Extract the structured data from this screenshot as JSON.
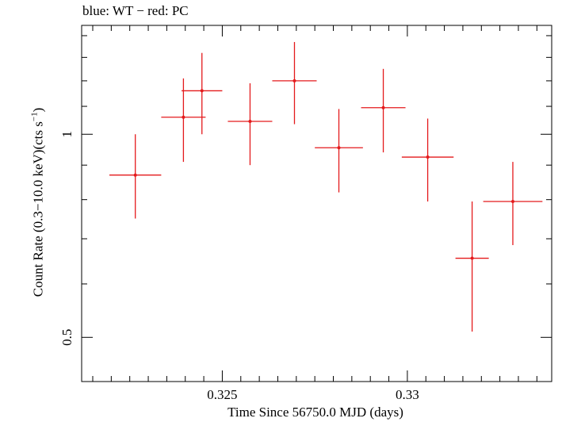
{
  "chart_data": {
    "type": "scatter",
    "title": "blue: WT − red: PC",
    "xlabel": "Time Since 56750.0 MJD (days)",
    "ylabel": "Count Rate (0.3−10.0 keV)(cts s",
    "ylabel_sup": "−1",
    "ylabel_end": ")",
    "xlim": [
      0.3212,
      0.3339
    ],
    "ylim": [
      0.43,
      1.45
    ],
    "yscale": "log",
    "x_ticks": [
      {
        "value": 0.325,
        "label": "0.325"
      },
      {
        "value": 0.33,
        "label": "0.33"
      }
    ],
    "y_ticks": [
      {
        "value": 0.5,
        "label": "0.5"
      },
      {
        "value": 1,
        "label": "1"
      }
    ],
    "grid": false,
    "series": [
      {
        "color": "#e41a1c",
        "points": [
          {
            "x": 0.32265,
            "xerr": 0.0007,
            "y": 0.87,
            "ylo": 0.75,
            "yhi": 1.0
          },
          {
            "x": 0.32395,
            "xerr": 0.0006,
            "y": 1.06,
            "ylo": 0.91,
            "yhi": 1.21
          },
          {
            "x": 0.32445,
            "xerr": 0.00055,
            "y": 1.16,
            "ylo": 1.0,
            "yhi": 1.32
          },
          {
            "x": 0.32575,
            "xerr": 0.0006,
            "y": 1.045,
            "ylo": 0.9,
            "yhi": 1.19
          },
          {
            "x": 0.32695,
            "xerr": 0.0006,
            "y": 1.2,
            "ylo": 1.035,
            "yhi": 1.37
          },
          {
            "x": 0.32815,
            "xerr": 0.00065,
            "y": 0.955,
            "ylo": 0.82,
            "yhi": 1.09
          },
          {
            "x": 0.32935,
            "xerr": 0.0006,
            "y": 1.095,
            "ylo": 0.94,
            "yhi": 1.25
          },
          {
            "x": 0.33055,
            "xerr": 0.0007,
            "y": 0.925,
            "ylo": 0.795,
            "yhi": 1.055
          },
          {
            "x": 0.33175,
            "xerr": 0.00045,
            "y": 0.655,
            "ylo": 0.51,
            "yhi": 0.795
          },
          {
            "x": 0.33285,
            "xerr": 0.0008,
            "y": 0.795,
            "ylo": 0.685,
            "yhi": 0.91
          }
        ]
      }
    ]
  }
}
